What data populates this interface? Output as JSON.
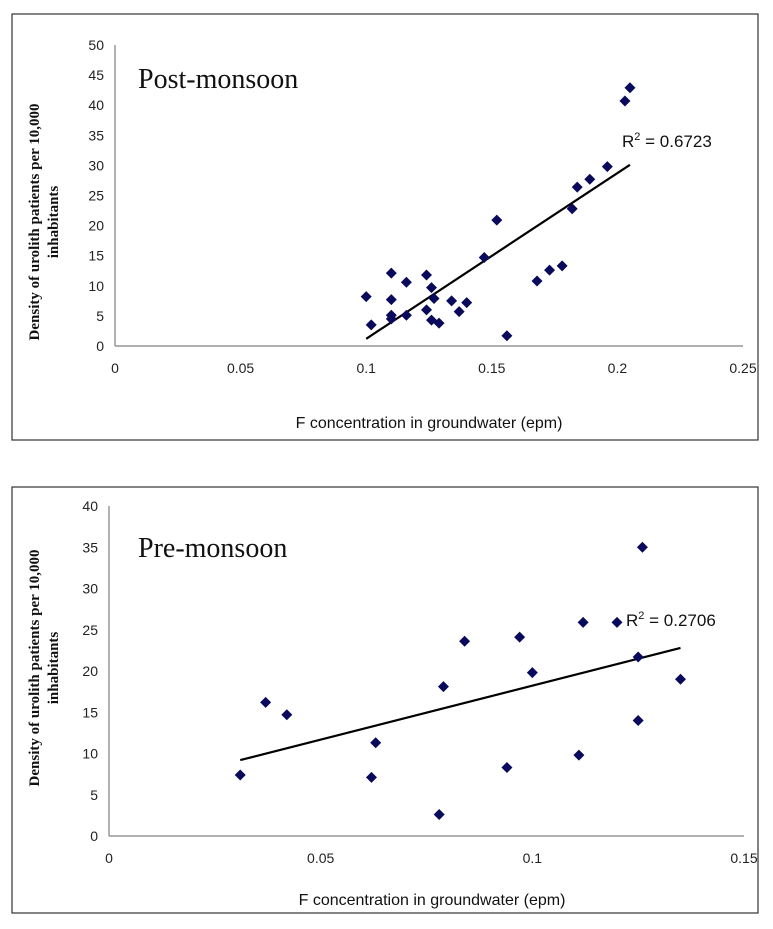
{
  "chart_data": [
    {
      "type": "scatter",
      "title": "",
      "annotation": "Post-monsoon",
      "r_squared_label": "0.6723",
      "xlabel": "F concentration in groundwater (epm)",
      "ylabel_line1": "Density of urolith patients per 10,000",
      "ylabel_line2": "inhabitants",
      "xlim": [
        0,
        0.25
      ],
      "ylim": [
        0,
        50
      ],
      "x_ticks": [
        "0",
        "0.05",
        "0.1",
        "0.15",
        "0.2",
        "0.25"
      ],
      "y_ticks": [
        "0",
        "5",
        "10",
        "15",
        "20",
        "25",
        "30",
        "35",
        "40",
        "45",
        "50"
      ],
      "points": [
        [
          0.1,
          8.2
        ],
        [
          0.102,
          3.5
        ],
        [
          0.11,
          12.1
        ],
        [
          0.11,
          7.7
        ],
        [
          0.11,
          5.1
        ],
        [
          0.11,
          4.5
        ],
        [
          0.116,
          10.6
        ],
        [
          0.116,
          5.1
        ],
        [
          0.124,
          11.8
        ],
        [
          0.124,
          6.0
        ],
        [
          0.126,
          9.7
        ],
        [
          0.126,
          4.3
        ],
        [
          0.127,
          7.9
        ],
        [
          0.129,
          3.8
        ],
        [
          0.134,
          7.5
        ],
        [
          0.137,
          5.7
        ],
        [
          0.14,
          7.2
        ],
        [
          0.147,
          14.7
        ],
        [
          0.152,
          20.9
        ],
        [
          0.156,
          1.7
        ],
        [
          0.168,
          10.8
        ],
        [
          0.173,
          12.6
        ],
        [
          0.178,
          13.3
        ],
        [
          0.182,
          22.8
        ],
        [
          0.184,
          26.4
        ],
        [
          0.189,
          27.7
        ],
        [
          0.196,
          29.8
        ],
        [
          0.203,
          40.7
        ],
        [
          0.205,
          42.9
        ]
      ],
      "trendline": {
        "x": [
          0.1,
          0.205
        ],
        "y": [
          1.2,
          30.1
        ]
      },
      "colors": {
        "marker": "#0a0a5c",
        "trend": "#000000"
      }
    },
    {
      "type": "scatter",
      "title": "",
      "annotation": "Pre-monsoon",
      "r_squared_label": "0.2706",
      "xlabel": "F concentration in groundwater (epm)",
      "ylabel_line1": "Density of urolith patients per 10,000",
      "ylabel_line2": "inhabitants",
      "xlim": [
        0,
        0.15
      ],
      "ylim": [
        0,
        40
      ],
      "x_ticks": [
        "0",
        "0.05",
        "0.1",
        "0.15"
      ],
      "y_ticks": [
        "0",
        "5",
        "10",
        "15",
        "20",
        "25",
        "30",
        "35",
        "40"
      ],
      "points": [
        [
          0.031,
          7.4
        ],
        [
          0.037,
          16.2
        ],
        [
          0.042,
          14.7
        ],
        [
          0.062,
          7.1
        ],
        [
          0.063,
          11.3
        ],
        [
          0.078,
          2.6
        ],
        [
          0.079,
          18.1
        ],
        [
          0.084,
          23.6
        ],
        [
          0.094,
          8.3
        ],
        [
          0.097,
          24.1
        ],
        [
          0.1,
          19.8
        ],
        [
          0.111,
          9.8
        ],
        [
          0.112,
          25.9
        ],
        [
          0.12,
          25.9
        ],
        [
          0.125,
          21.7
        ],
        [
          0.125,
          14.0
        ],
        [
          0.126,
          35.0
        ],
        [
          0.135,
          19.0
        ]
      ],
      "trendline": {
        "x": [
          0.031,
          0.135
        ],
        "y": [
          9.2,
          22.8
        ]
      },
      "colors": {
        "marker": "#0a0a5c",
        "trend": "#000000"
      }
    }
  ]
}
